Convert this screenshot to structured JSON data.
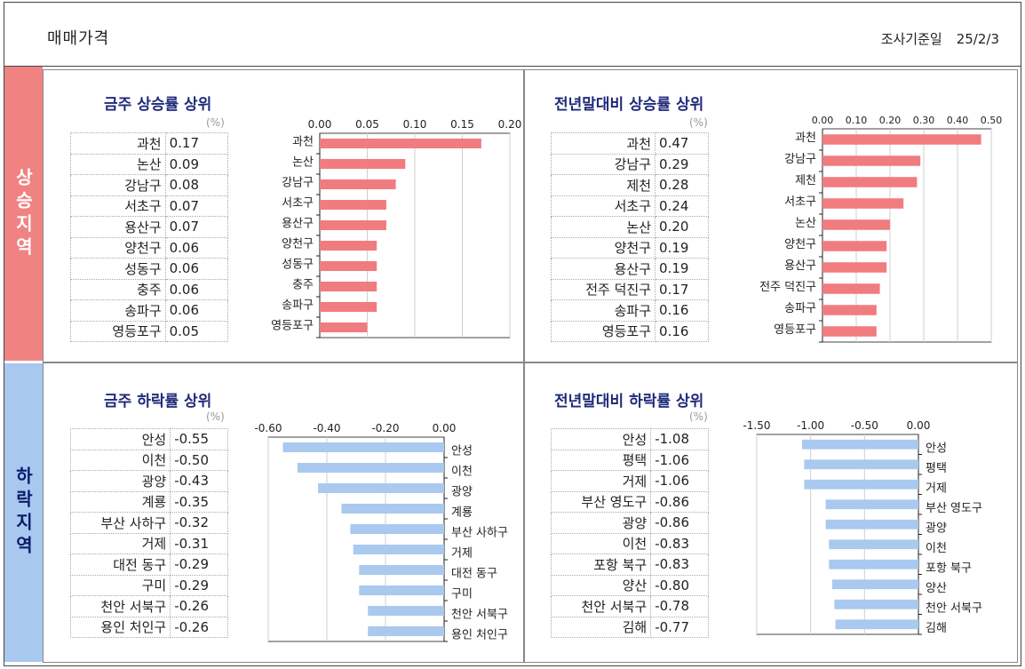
{
  "header": {
    "title": "매매가격",
    "survey_label": "조사기준일",
    "survey_date": "25/2/3"
  },
  "regions": {
    "rise": "상승지역",
    "fall": "하락지역"
  },
  "panels": {
    "weekly_rise": {
      "title": "금주 상승률 상위",
      "unit": "(%)",
      "rows": [
        {
          "name": "과천",
          "value": "0.17"
        },
        {
          "name": "논산",
          "value": "0.09"
        },
        {
          "name": "강남구",
          "value": "0.08"
        },
        {
          "name": "서초구",
          "value": "0.07"
        },
        {
          "name": "용산구",
          "value": "0.07"
        },
        {
          "name": "양천구",
          "value": "0.06"
        },
        {
          "name": "성동구",
          "value": "0.06"
        },
        {
          "name": "충주",
          "value": "0.06"
        },
        {
          "name": "송파구",
          "value": "0.06"
        },
        {
          "name": "영등포구",
          "value": "0.05"
        }
      ]
    },
    "yearly_rise": {
      "title": "전년말대비 상승률 상위",
      "unit": "(%)",
      "rows": [
        {
          "name": "과천",
          "value": "0.47"
        },
        {
          "name": "강남구",
          "value": "0.29"
        },
        {
          "name": "제천",
          "value": "0.28"
        },
        {
          "name": "서초구",
          "value": "0.24"
        },
        {
          "name": "논산",
          "value": "0.20"
        },
        {
          "name": "양천구",
          "value": "0.19"
        },
        {
          "name": "용산구",
          "value": "0.19"
        },
        {
          "name": "전주 덕진구",
          "value": "0.17"
        },
        {
          "name": "송파구",
          "value": "0.16"
        },
        {
          "name": "영등포구",
          "value": "0.16"
        }
      ]
    },
    "weekly_fall": {
      "title": "금주 하락률 상위",
      "unit": "(%)",
      "rows": [
        {
          "name": "안성",
          "value": "-0.55"
        },
        {
          "name": "이천",
          "value": "-0.50"
        },
        {
          "name": "광양",
          "value": "-0.43"
        },
        {
          "name": "계룡",
          "value": "-0.35"
        },
        {
          "name": "부산 사하구",
          "value": "-0.32"
        },
        {
          "name": "거제",
          "value": "-0.31"
        },
        {
          "name": "대전 동구",
          "value": "-0.29"
        },
        {
          "name": "구미",
          "value": "-0.29"
        },
        {
          "name": "천안 서북구",
          "value": "-0.26"
        },
        {
          "name": "용인 처인구",
          "value": "-0.26"
        }
      ]
    },
    "yearly_fall": {
      "title": "전년말대비 하락률 상위",
      "unit": "(%)",
      "rows": [
        {
          "name": "안성",
          "value": "-1.08"
        },
        {
          "name": "평택",
          "value": "-1.06"
        },
        {
          "name": "거제",
          "value": "-1.06"
        },
        {
          "name": "부산 영도구",
          "value": "-0.86"
        },
        {
          "name": "광양",
          "value": "-0.86"
        },
        {
          "name": "이천",
          "value": "-0.83"
        },
        {
          "name": "포항 북구",
          "value": "-0.83"
        },
        {
          "name": "양산",
          "value": "-0.80"
        },
        {
          "name": "천안 서북구",
          "value": "-0.78"
        },
        {
          "name": "김해",
          "value": "-0.77"
        }
      ]
    }
  },
  "chart_data": [
    {
      "type": "bar",
      "title": "금주 상승률 상위",
      "categories": [
        "과천",
        "논산",
        "강남구",
        "서초구",
        "용산구",
        "양천구",
        "성동구",
        "충주",
        "송파구",
        "영등포구"
      ],
      "values": [
        0.17,
        0.09,
        0.08,
        0.07,
        0.07,
        0.06,
        0.06,
        0.06,
        0.06,
        0.05
      ],
      "xlim": [
        0,
        0.2
      ],
      "ticks": [
        "0.00",
        "0.05",
        "0.10",
        "0.15",
        "0.20"
      ],
      "orientation": "horizontal",
      "color": "#f07c80",
      "grid": true
    },
    {
      "type": "bar",
      "title": "전년말대비 상승률 상위",
      "categories": [
        "과천",
        "강남구",
        "제천",
        "서초구",
        "논산",
        "양천구",
        "용산구",
        "전주 덕진구",
        "송파구",
        "영등포구"
      ],
      "values": [
        0.47,
        0.29,
        0.28,
        0.24,
        0.2,
        0.19,
        0.19,
        0.17,
        0.16,
        0.16
      ],
      "xlim": [
        0,
        0.5
      ],
      "ticks": [
        "0.00",
        "0.10",
        "0.20",
        "0.30",
        "0.40",
        "0.50"
      ],
      "orientation": "horizontal",
      "color": "#f07c80",
      "grid": true
    },
    {
      "type": "bar",
      "title": "금주 하락률 상위",
      "categories": [
        "안성",
        "이천",
        "광양",
        "계룡",
        "부산 사하구",
        "거제",
        "대전 동구",
        "구미",
        "천안 서북구",
        "용인 처인구"
      ],
      "values": [
        -0.55,
        -0.5,
        -0.43,
        -0.35,
        -0.32,
        -0.31,
        -0.29,
        -0.29,
        -0.26,
        -0.26
      ],
      "xlim": [
        -0.6,
        0
      ],
      "ticks": [
        "-0.60",
        "-0.40",
        "-0.20",
        "0.00"
      ],
      "orientation": "horizontal",
      "color": "#a9c9ef",
      "grid": true
    },
    {
      "type": "bar",
      "title": "전년말대비 하락률 상위",
      "categories": [
        "안성",
        "평택",
        "거제",
        "부산 영도구",
        "광양",
        "이천",
        "포항 북구",
        "양산",
        "천안 서북구",
        "김해"
      ],
      "values": [
        -1.08,
        -1.06,
        -1.06,
        -0.86,
        -0.86,
        -0.83,
        -0.83,
        -0.8,
        -0.78,
        -0.77
      ],
      "xlim": [
        -1.5,
        0
      ],
      "ticks": [
        "-1.50",
        "-1.00",
        "-0.50",
        "0.00"
      ],
      "orientation": "horizontal",
      "color": "#a9c9ef",
      "grid": true
    }
  ]
}
